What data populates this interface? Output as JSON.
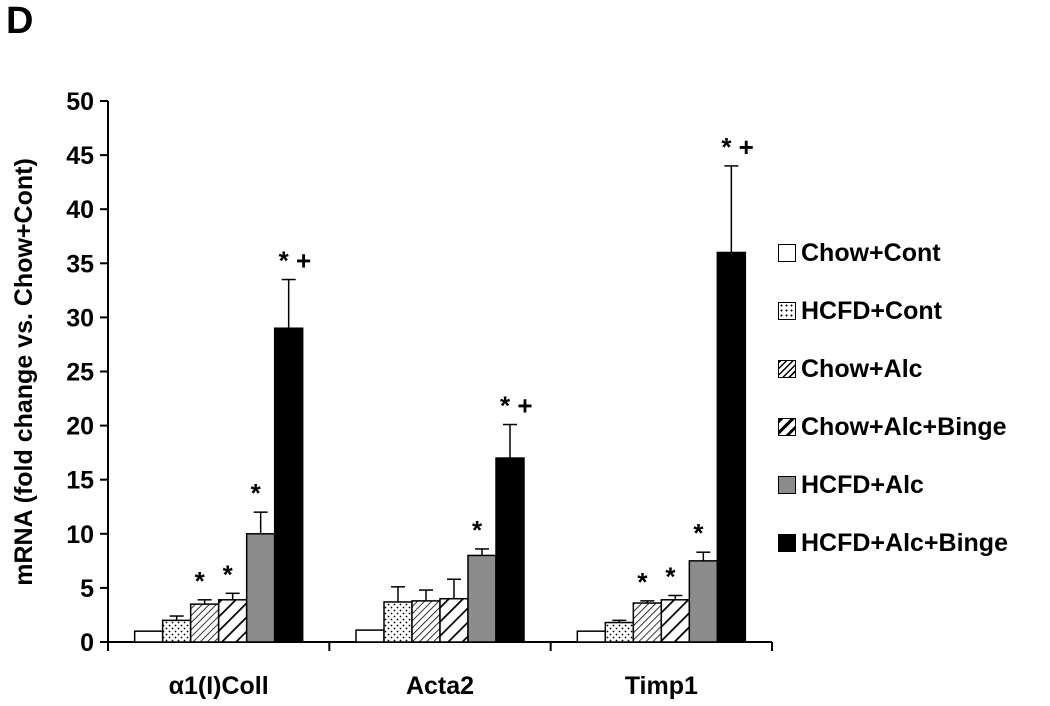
{
  "panel_label": "D",
  "colors": {
    "chow_cont": "#ffffff",
    "hcfd_cont": "#ffffff",
    "chow_alc": "#ffffff",
    "chow_alc_binge": "#ffffff",
    "hcfd_alc": "#8c8c8c",
    "hcfd_alc_binge": "#000000"
  },
  "chart_data": {
    "type": "bar",
    "ylabel": "mRNA (fold change vs. Chow+Cont)",
    "xlabel": "",
    "ylim": [
      0,
      50
    ],
    "yticks": [
      0,
      5,
      10,
      15,
      20,
      25,
      30,
      35,
      40,
      45,
      50
    ],
    "categories": [
      "α1(I)Coll",
      "Acta2",
      "Timp1"
    ],
    "legend_position": "right",
    "series": [
      {
        "name": "Chow+Cont",
        "pattern": "white",
        "values": [
          1,
          1.1,
          1
        ],
        "errors": [
          0,
          0,
          0
        ],
        "marks": [
          "",
          "",
          ""
        ]
      },
      {
        "name": "HCFD+Cont",
        "pattern": "dots",
        "values": [
          2,
          3.7,
          1.8
        ],
        "errors": [
          0.4,
          1.4,
          0.2
        ],
        "marks": [
          "",
          "",
          ""
        ]
      },
      {
        "name": "Chow+Alc",
        "pattern": "hatch-fine",
        "values": [
          3.5,
          3.8,
          3.6
        ],
        "errors": [
          0.4,
          1.0,
          0.2
        ],
        "marks": [
          "*",
          "",
          "*"
        ]
      },
      {
        "name": "Chow+Alc+Binge",
        "pattern": "hatch-wide",
        "values": [
          3.9,
          4.0,
          3.9
        ],
        "errors": [
          0.6,
          1.8,
          0.4
        ],
        "marks": [
          "*",
          "",
          "*"
        ]
      },
      {
        "name": "HCFD+Alc",
        "pattern": "gray",
        "values": [
          10,
          8,
          7.5
        ],
        "errors": [
          2.0,
          0.6,
          0.8
        ],
        "marks": [
          "*",
          "*",
          "*"
        ]
      },
      {
        "name": "HCFD+Alc+Binge",
        "pattern": "black",
        "values": [
          29,
          17,
          36
        ],
        "errors": [
          4.5,
          3.1,
          8.0
        ],
        "marks": [
          "* +",
          "* +",
          "* +"
        ]
      }
    ]
  }
}
